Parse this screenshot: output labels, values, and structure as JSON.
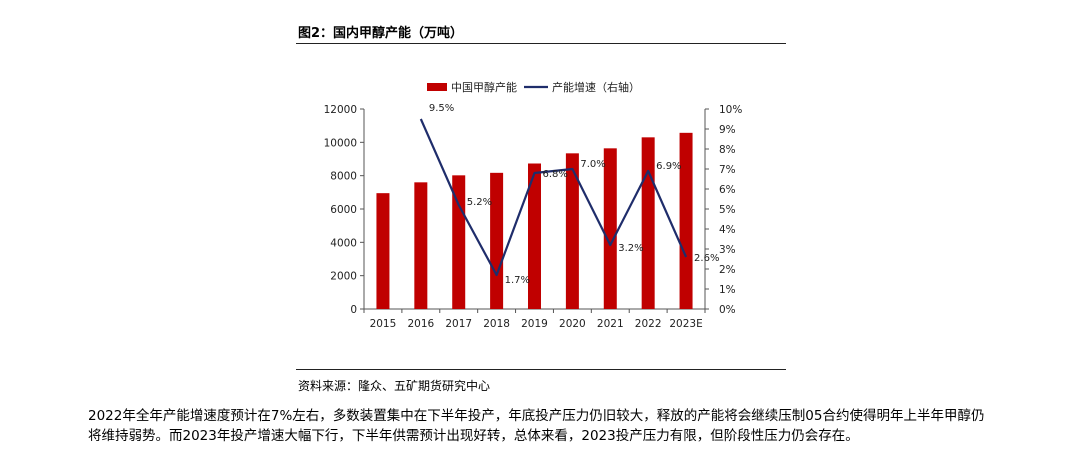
{
  "figure": {
    "title": "图2：国内甲醇产能（万吨）",
    "source": "资料来源：隆众、五矿期货研究中心"
  },
  "paragraph": "2022年全年产能增速度预计在7%左右，多数装置集中在下半年投产，年底投产压力仍旧较大，释放的产能将会继续压制05合约使得明年上半年甲醇仍将维持弱势。而2023年投产增速大幅下行，下半年供需预计出现好转，总体来看，2023投产压力有限，但阶段性压力仍会存在。",
  "colors": {
    "bar": "#c00000",
    "line": "#1f2d6b"
  },
  "chart_data": {
    "type": "bar",
    "categories": [
      "2015",
      "2016",
      "2017",
      "2018",
      "2019",
      "2020",
      "2021",
      "2022",
      "2023E"
    ],
    "series": [
      {
        "name": "中国甲醇产能",
        "type": "bar",
        "axis": "left",
        "values": [
          6950,
          7600,
          8020,
          8170,
          8730,
          9340,
          9640,
          10300,
          10570
        ]
      },
      {
        "name": "产能增速（右轴）",
        "type": "line",
        "axis": "right",
        "values": [
          null,
          9.5,
          5.2,
          1.7,
          6.8,
          7.0,
          3.2,
          6.9,
          2.6
        ],
        "labels": [
          "",
          "9.5%",
          "5.2%",
          "1.7%",
          "6.8%",
          "7.0%",
          "3.2%",
          "6.9%",
          "2.6%"
        ]
      }
    ],
    "y_left": {
      "min": 0,
      "max": 12000,
      "ticks": [
        "0",
        "2000",
        "4000",
        "6000",
        "8000",
        "10000",
        "12000"
      ]
    },
    "y_right": {
      "min": 0,
      "max": 10,
      "ticks": [
        "0%",
        "1%",
        "2%",
        "3%",
        "4%",
        "5%",
        "6%",
        "7%",
        "8%",
        "9%",
        "10%"
      ]
    },
    "grid": false,
    "legend_position": "top-center"
  }
}
